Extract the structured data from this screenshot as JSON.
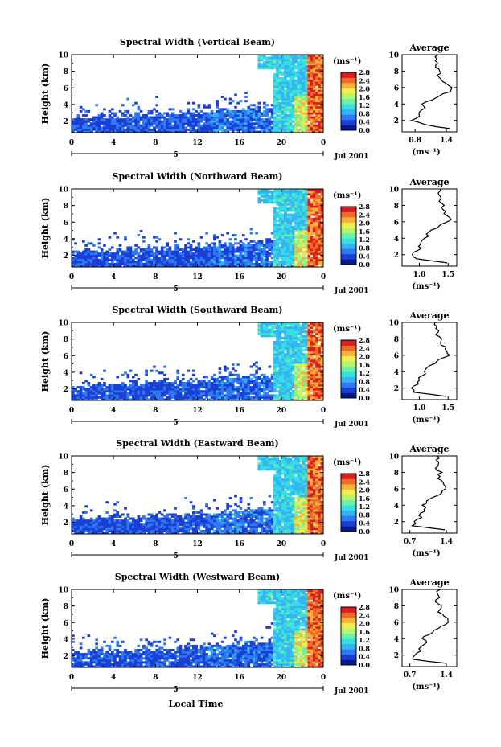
{
  "figure": {
    "xlabel": "Local Time",
    "day_label": "5",
    "date_label": "Jul 2001",
    "ylabel": "Height (km)",
    "unit_label": "(ms⁻¹)",
    "avg_title": "Average",
    "avg_xlabel": "(ms⁻¹)",
    "colors": [
      "#0a1a8c",
      "#1a3fd6",
      "#2f7af0",
      "#34b4f5",
      "#37dfe0",
      "#6cf2a8",
      "#b8f56a",
      "#f2ee52",
      "#f7b23a",
      "#f06a2a",
      "#d81e1e"
    ]
  },
  "chart_data": [
    {
      "type": "heatmap",
      "title": "Spectral Width (Vertical Beam)",
      "xlim": [
        0,
        24
      ],
      "xticks": [
        "0",
        "4",
        "8",
        "12",
        "16",
        "20",
        "0"
      ],
      "ylim": [
        0.6,
        10
      ],
      "yticks": [
        "2",
        "4",
        "6",
        "8",
        "10"
      ],
      "colorbar": {
        "ticks": [
          "0.0",
          "0.4",
          "0.8",
          "1.2",
          "1.6",
          "2.0",
          "2.4",
          "2.8"
        ]
      },
      "average": {
        "xticks": [
          "0.8",
          "1.4"
        ],
        "xlim": [
          0.55,
          1.6
        ],
        "height": [
          1.0,
          1.5,
          2.0,
          2.5,
          3.0,
          3.5,
          4.0,
          4.5,
          5.0,
          5.5,
          6.0,
          6.5,
          7.0,
          7.5,
          8.0,
          8.5,
          9.0,
          9.5,
          10.0
        ],
        "value": [
          1.45,
          1.0,
          0.75,
          0.9,
          0.85,
          1.0,
          0.95,
          1.1,
          1.3,
          1.45,
          1.5,
          1.4,
          1.3,
          1.25,
          1.3,
          1.2,
          1.25,
          1.2,
          1.25
        ]
      }
    },
    {
      "type": "heatmap",
      "title": "Spectral Width (Northward Beam)",
      "xlim": [
        0,
        24
      ],
      "xticks": [
        "0",
        "4",
        "8",
        "12",
        "16",
        "20",
        "0"
      ],
      "ylim": [
        0.6,
        10
      ],
      "yticks": [
        "2",
        "4",
        "6",
        "8",
        "10"
      ],
      "colorbar": {
        "ticks": [
          "0.0",
          "0.4",
          "0.8",
          "1.2",
          "1.6",
          "2.0",
          "2.4",
          "2.8"
        ]
      },
      "average": {
        "xticks": [
          "1.0",
          "1.5"
        ],
        "xlim": [
          0.7,
          1.65
        ],
        "height": [
          1.0,
          1.5,
          2.0,
          2.5,
          3.0,
          3.5,
          4.0,
          4.5,
          5.0,
          5.5,
          6.0,
          6.5,
          7.0,
          7.5,
          8.0,
          8.5,
          9.0,
          9.5,
          10.0
        ],
        "value": [
          1.5,
          0.95,
          0.85,
          1.0,
          1.0,
          1.05,
          1.1,
          1.15,
          1.2,
          1.35,
          1.5,
          1.55,
          1.45,
          1.4,
          1.45,
          1.35,
          1.4,
          1.35,
          1.4
        ]
      }
    },
    {
      "type": "heatmap",
      "title": "Spectral Width (Southward Beam)",
      "xlim": [
        0,
        24
      ],
      "xticks": [
        "0",
        "4",
        "8",
        "12",
        "16",
        "20",
        "0"
      ],
      "ylim": [
        0.6,
        10
      ],
      "yticks": [
        "2",
        "4",
        "6",
        "8",
        "10"
      ],
      "colorbar": {
        "ticks": [
          "0.0",
          "0.4",
          "0.8",
          "1.2",
          "1.6",
          "2.0",
          "2.4",
          "2.8"
        ]
      },
      "average": {
        "xticks": [
          "1.0",
          "1.5"
        ],
        "xlim": [
          0.7,
          1.65
        ],
        "height": [
          1.0,
          1.5,
          2.0,
          2.5,
          3.0,
          3.5,
          4.0,
          4.5,
          5.0,
          5.5,
          6.0,
          6.5,
          7.0,
          7.5,
          8.0,
          8.5,
          9.0,
          9.5,
          10.0
        ],
        "value": [
          1.45,
          0.9,
          0.85,
          0.95,
          1.0,
          1.05,
          1.1,
          1.15,
          1.25,
          1.35,
          1.5,
          1.5,
          1.45,
          1.35,
          1.4,
          1.3,
          1.35,
          1.3,
          1.3
        ]
      }
    },
    {
      "type": "heatmap",
      "title": "Spectral Width (Eastward Beam)",
      "xlim": [
        0,
        24
      ],
      "xticks": [
        "0",
        "4",
        "8",
        "12",
        "16",
        "20",
        "0"
      ],
      "ylim": [
        0.6,
        10
      ],
      "yticks": [
        "2",
        "4",
        "6",
        "8",
        "10"
      ],
      "colorbar": {
        "ticks": [
          "0.0",
          "0.4",
          "0.8",
          "1.2",
          "1.6",
          "2.0",
          "2.4",
          "2.8"
        ]
      },
      "average": {
        "xticks": [
          "0.7",
          "1.4"
        ],
        "xlim": [
          0.55,
          1.6
        ],
        "height": [
          1.0,
          1.5,
          2.0,
          2.5,
          3.0,
          3.5,
          4.0,
          4.5,
          5.0,
          5.5,
          6.0,
          6.5,
          7.0,
          7.5,
          8.0,
          8.5,
          9.0,
          9.5,
          10.0
        ],
        "value": [
          1.4,
          0.75,
          0.8,
          0.9,
          0.9,
          1.0,
          0.95,
          1.05,
          1.15,
          1.3,
          1.4,
          1.35,
          1.3,
          1.25,
          1.3,
          1.2,
          1.25,
          1.2,
          1.25
        ]
      }
    },
    {
      "type": "heatmap",
      "title": "Spectral Width (Westward Beam)",
      "xlim": [
        0,
        24
      ],
      "xticks": [
        "0",
        "4",
        "8",
        "12",
        "16",
        "20",
        "0"
      ],
      "ylim": [
        0.6,
        10
      ],
      "yticks": [
        "2",
        "4",
        "6",
        "8",
        "10"
      ],
      "colorbar": {
        "ticks": [
          "0.0",
          "0.4",
          "0.8",
          "1.2",
          "1.6",
          "2.0",
          "2.4",
          "2.8"
        ]
      },
      "average": {
        "xticks": [
          "0.7",
          "1.4"
        ],
        "xlim": [
          0.55,
          1.6
        ],
        "height": [
          1.0,
          1.5,
          2.0,
          2.5,
          3.0,
          3.5,
          4.0,
          4.5,
          5.0,
          5.5,
          6.0,
          6.5,
          7.0,
          7.5,
          8.0,
          8.5,
          9.0,
          9.5,
          10.0
        ],
        "value": [
          1.4,
          0.75,
          0.8,
          0.9,
          0.9,
          1.0,
          0.95,
          1.05,
          1.15,
          1.3,
          1.45,
          1.4,
          1.3,
          1.25,
          1.3,
          1.2,
          1.25,
          1.2,
          1.25
        ]
      }
    }
  ]
}
